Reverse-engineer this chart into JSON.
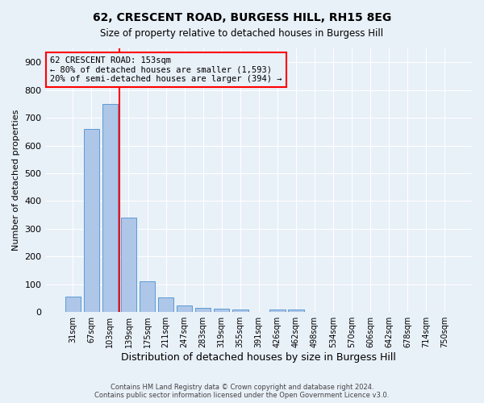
{
  "title": "62, CRESCENT ROAD, BURGESS HILL, RH15 8EG",
  "subtitle": "Size of property relative to detached houses in Burgess Hill",
  "xlabel": "Distribution of detached houses by size in Burgess Hill",
  "ylabel": "Number of detached properties",
  "categories": [
    "31sqm",
    "67sqm",
    "103sqm",
    "139sqm",
    "175sqm",
    "211sqm",
    "247sqm",
    "283sqm",
    "319sqm",
    "355sqm",
    "391sqm",
    "426sqm",
    "462sqm",
    "498sqm",
    "534sqm",
    "570sqm",
    "606sqm",
    "642sqm",
    "678sqm",
    "714sqm",
    "750sqm"
  ],
  "values": [
    55,
    660,
    750,
    340,
    110,
    52,
    25,
    15,
    12,
    10,
    0,
    10,
    10,
    0,
    0,
    0,
    0,
    0,
    0,
    0,
    0
  ],
  "bar_color": "#aec6e8",
  "bar_edge_color": "#5b9bd5",
  "bar_width": 0.85,
  "red_line_x": 2.5,
  "annotation_line1": "62 CRESCENT ROAD: 153sqm",
  "annotation_line2": "← 80% of detached houses are smaller (1,593)",
  "annotation_line3": "20% of semi-detached houses are larger (394) →",
  "ylim": [
    0,
    950
  ],
  "yticks": [
    0,
    100,
    200,
    300,
    400,
    500,
    600,
    700,
    800,
    900
  ],
  "background_color": "#e8f0f8",
  "grid_color": "#ffffff",
  "footer1": "Contains HM Land Registry data © Crown copyright and database right 2024.",
  "footer2": "Contains public sector information licensed under the Open Government Licence v3.0."
}
